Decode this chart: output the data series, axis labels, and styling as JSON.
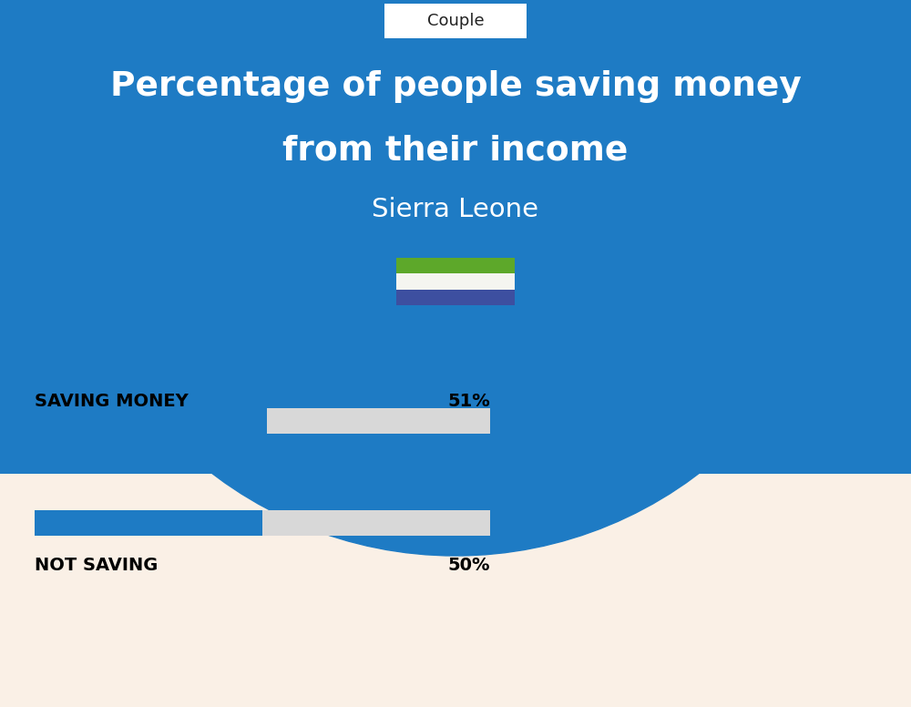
{
  "title_line1": "Percentage of people saving money",
  "title_line2": "from their income",
  "subtitle": "Sierra Leone",
  "tab_label": "Couple",
  "bg_top_color": "#1E7BC4",
  "bg_bottom_color": "#FAF0E6",
  "bar1_label": "SAVING MONEY",
  "bar1_value": 51,
  "bar1_pct": "51%",
  "bar2_label": "NOT SAVING",
  "bar2_value": 50,
  "bar2_pct": "50%",
  "bar_fill_color": "#1E7BC4",
  "bar_bg_color": "#D8D8D8",
  "flag_colors_top_to_bottom": [
    "#5DA82A",
    "#F5F5F0",
    "#3D4FA0"
  ],
  "title_color": "#FFFFFF",
  "subtitle_color": "#FFFFFF",
  "label_color": "#000000",
  "pct_color": "#000000",
  "tab_bg": "#FFFFFF",
  "tab_border": "#CCCCCC",
  "fig_width": 10.0,
  "fig_height": 7.76
}
